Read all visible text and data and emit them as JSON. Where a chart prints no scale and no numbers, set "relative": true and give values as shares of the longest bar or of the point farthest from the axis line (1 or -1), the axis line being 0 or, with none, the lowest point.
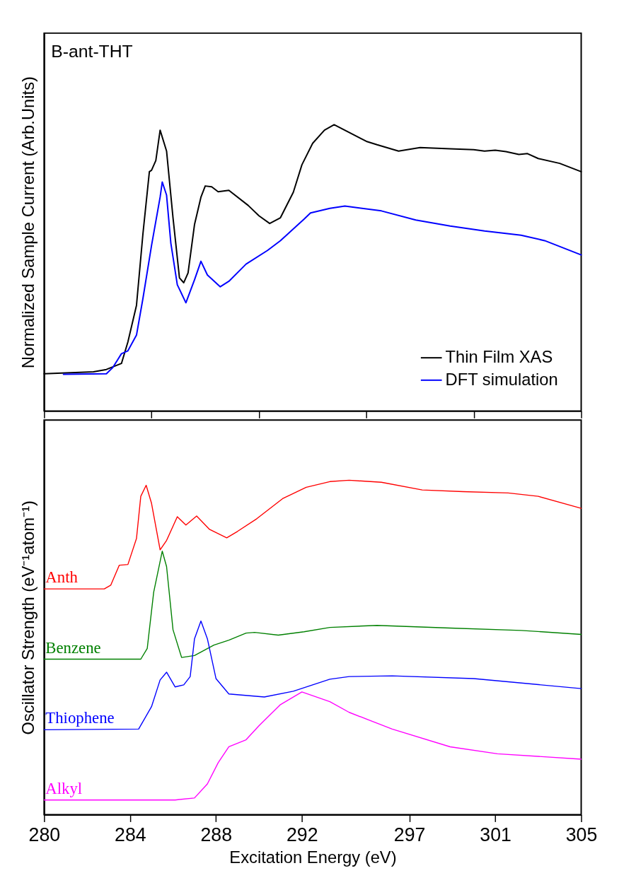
{
  "chart_data": [
    {
      "type": "line",
      "title": "B-ant-THT",
      "ylabel": "Normalized  Sample Current (Arb.Units)",
      "relative": true,
      "xlim": [
        280,
        305
      ],
      "xticks": [
        {
          "value": 280,
          "label": null
        },
        {
          "value": 285,
          "label": null
        },
        {
          "value": 290,
          "label": null
        },
        {
          "value": 295,
          "label": null
        },
        {
          "value": 300,
          "label": null
        },
        {
          "value": 305,
          "label": null
        }
      ],
      "tick_labels": false,
      "grid": false,
      "legend": "bottom right",
      "line_style": "solid",
      "marker": "none",
      "series": [
        {
          "name": "Thin Film XAS",
          "color": "#000000",
          "x": [
            280.0,
            282.3,
            282.9,
            283.6,
            283.9,
            284.3,
            284.6,
            284.9,
            285.0,
            285.2,
            285.4,
            285.7,
            286.0,
            286.3,
            286.5,
            286.7,
            287.0,
            287.3,
            287.5,
            287.8,
            288.1,
            288.6,
            289.5,
            290.0,
            290.5,
            291.0,
            291.6,
            292.0,
            292.5,
            293.05,
            293.5,
            295.0,
            295.5,
            296.5,
            297.5,
            298.9,
            300.0,
            300.5,
            301.0,
            301.5,
            302.1,
            302.5,
            303.0,
            304.0,
            305.0
          ],
          "values": [
            0.13,
            0.137,
            0.145,
            0.166,
            0.241,
            0.369,
            0.619,
            0.836,
            0.841,
            0.875,
            0.981,
            0.908,
            0.675,
            0.465,
            0.448,
            0.482,
            0.651,
            0.747,
            0.786,
            0.783,
            0.766,
            0.771,
            0.718,
            0.682,
            0.655,
            0.675,
            0.764,
            0.86,
            0.935,
            0.981,
            1.0,
            0.942,
            0.93,
            0.908,
            0.92,
            0.916,
            0.913,
            0.908,
            0.911,
            0.906,
            0.896,
            0.899,
            0.882,
            0.865,
            0.836
          ]
        },
        {
          "name": "DFT simulation",
          "color": "#0000ff",
          "x": [
            280.9,
            282.9,
            283.2,
            283.6,
            283.9,
            284.3,
            284.6,
            285.0,
            285.4,
            285.5,
            285.7,
            285.9,
            286.2,
            286.6,
            287.0,
            287.3,
            287.6,
            288.2,
            288.6,
            289.4,
            290.4,
            291.0,
            292.1,
            292.4,
            293.3,
            294.0,
            295.7,
            297.3,
            298.9,
            300.5,
            302.2,
            303.3,
            305.0
          ],
          "values": [
            0.128,
            0.13,
            0.152,
            0.2,
            0.21,
            0.265,
            0.393,
            0.578,
            0.747,
            0.8,
            0.754,
            0.586,
            0.441,
            0.378,
            0.458,
            0.523,
            0.475,
            0.434,
            0.453,
            0.513,
            0.561,
            0.595,
            0.67,
            0.692,
            0.708,
            0.716,
            0.699,
            0.667,
            0.646,
            0.629,
            0.614,
            0.595,
            0.545
          ]
        }
      ]
    },
    {
      "type": "line",
      "xlabel": "Excitation Energy (eV)",
      "ylabel": "Oscillator Strength (eV⁻¹atom⁻¹)",
      "relative": true,
      "xlim": [
        280,
        305
      ],
      "xticks": [
        280,
        284,
        288,
        292,
        297,
        301,
        305
      ],
      "grid": false,
      "legend": false,
      "line_style": "solid",
      "marker": "none",
      "series": [
        {
          "name": "Anth",
          "color": "#ff0000",
          "x": [
            280.0,
            282.8,
            283.1,
            283.5,
            283.9,
            284.3,
            284.5,
            284.75,
            285.0,
            285.4,
            285.7,
            286.2,
            286.6,
            287.1,
            287.7,
            288.5,
            289.0,
            289.9,
            291.1,
            292.2,
            293.3,
            294.2,
            295.7,
            297.6,
            299.5,
            301.6,
            303.0,
            305.0
          ],
          "values": [
            0.675,
            0.675,
            0.686,
            0.746,
            0.748,
            0.826,
            0.952,
            0.985,
            0.931,
            0.792,
            0.82,
            0.891,
            0.866,
            0.893,
            0.853,
            0.828,
            0.847,
            0.885,
            0.945,
            0.979,
            0.996,
            1.0,
            0.994,
            0.971,
            0.966,
            0.962,
            0.952,
            0.916
          ]
        },
        {
          "name": "Benzene",
          "color": "#008000",
          "x": [
            280.0,
            284.5,
            284.8,
            285.1,
            285.5,
            285.7,
            286.0,
            286.4,
            287.0,
            287.9,
            288.6,
            289.4,
            289.8,
            290.9,
            292.1,
            293.3,
            295.5,
            298.9,
            302.2,
            305.0
          ],
          "values": [
            0.465,
            0.465,
            0.497,
            0.665,
            0.788,
            0.742,
            0.553,
            0.47,
            0.476,
            0.507,
            0.522,
            0.543,
            0.545,
            0.537,
            0.547,
            0.56,
            0.566,
            0.558,
            0.551,
            0.539
          ]
        },
        {
          "name": "Thiophene",
          "color": "#0000ff",
          "x": [
            280.0,
            284.4,
            285.0,
            285.4,
            285.7,
            286.1,
            286.5,
            286.8,
            287.0,
            287.3,
            287.6,
            288.0,
            288.6,
            290.25,
            291.6,
            293.3,
            294.2,
            296.2,
            300.0,
            305.0
          ],
          "values": [
            0.254,
            0.256,
            0.323,
            0.403,
            0.426,
            0.382,
            0.388,
            0.413,
            0.526,
            0.579,
            0.526,
            0.407,
            0.361,
            0.352,
            0.369,
            0.405,
            0.413,
            0.415,
            0.407,
            0.377
          ]
        },
        {
          "name": "Alkyl",
          "color": "#ff00ff",
          "x": [
            280.0,
            286.1,
            287.0,
            287.6,
            288.1,
            288.6,
            289.4,
            290.0,
            291.0,
            292.0,
            293.3,
            294.2,
            296.2,
            298.9,
            301.1,
            305.0
          ],
          "values": [
            0.044,
            0.044,
            0.05,
            0.092,
            0.155,
            0.203,
            0.224,
            0.266,
            0.329,
            0.367,
            0.338,
            0.306,
            0.256,
            0.203,
            0.182,
            0.166
          ]
        }
      ]
    }
  ]
}
